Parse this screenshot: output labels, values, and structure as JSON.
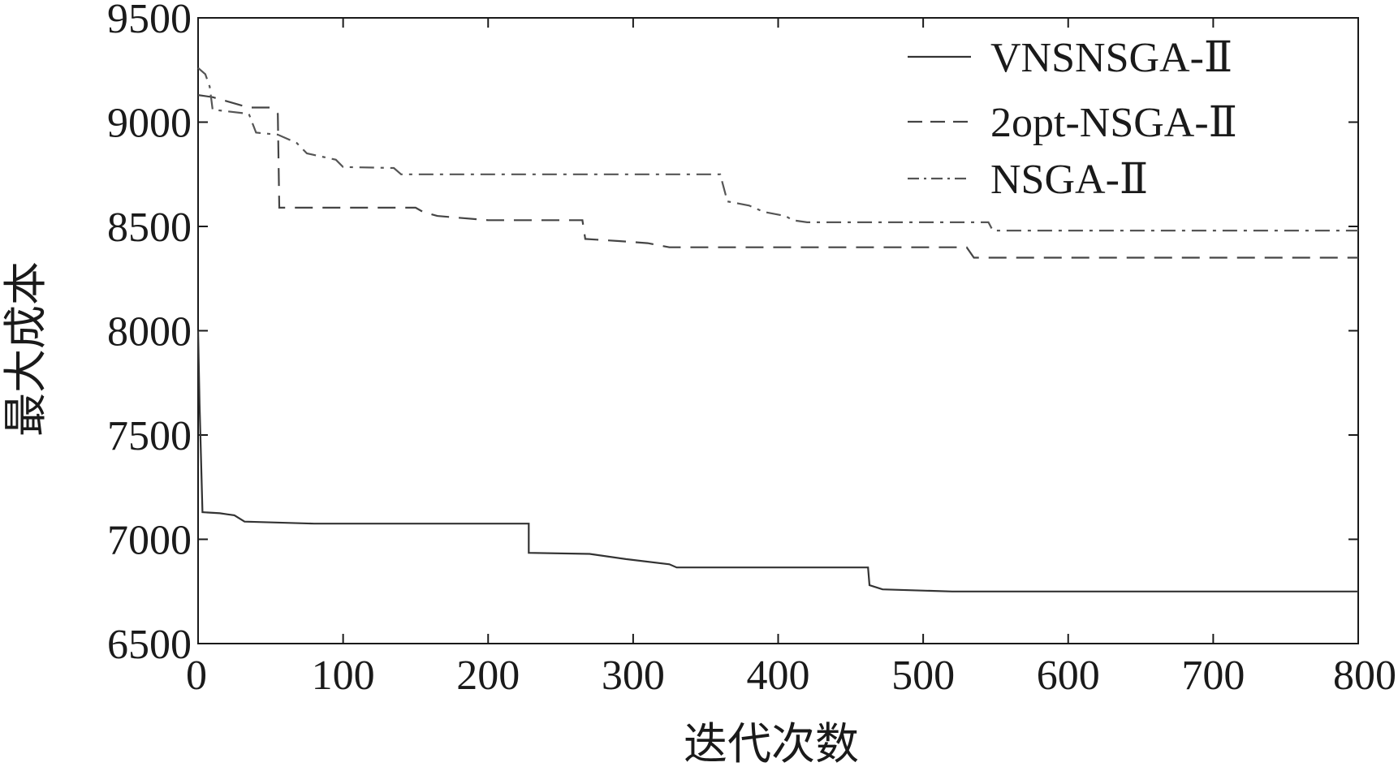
{
  "chart_data": {
    "type": "line",
    "title": "",
    "xlabel": "迭代次数",
    "ylabel": "最大成本",
    "xlim": [
      0,
      800
    ],
    "ylim": [
      6500,
      9500
    ],
    "x_ticks": [
      0,
      100,
      200,
      300,
      400,
      500,
      600,
      700,
      800
    ],
    "y_ticks": [
      6500,
      7000,
      7500,
      8000,
      8500,
      9000,
      9500
    ],
    "x_tick_labels": [
      "0",
      "100",
      "200",
      "300",
      "400",
      "500",
      "600",
      "700",
      "800"
    ],
    "y_tick_labels": [
      "6500",
      "7000",
      "7500",
      "8000",
      "8500",
      "9000",
      "9500"
    ],
    "grid": false,
    "legend_position": "top-right",
    "series": [
      {
        "name": "VNSNSGA-Ⅱ",
        "style": "solid",
        "color": "#333333",
        "points": [
          [
            0,
            8000
          ],
          [
            1,
            7650
          ],
          [
            3,
            7130
          ],
          [
            15,
            7125
          ],
          [
            20,
            7120
          ],
          [
            25,
            7115
          ],
          [
            32,
            7085
          ],
          [
            80,
            7075
          ],
          [
            200,
            7075
          ],
          [
            228,
            7075
          ],
          [
            228,
            6935
          ],
          [
            270,
            6930
          ],
          [
            295,
            6905
          ],
          [
            325,
            6880
          ],
          [
            330,
            6865
          ],
          [
            440,
            6865
          ],
          [
            462,
            6865
          ],
          [
            463,
            6780
          ],
          [
            472,
            6760
          ],
          [
            520,
            6750
          ],
          [
            800,
            6750
          ]
        ]
      },
      {
        "name": "2opt-NSGA-Ⅱ",
        "style": "dashed",
        "color": "#444444",
        "points": [
          [
            0,
            9130
          ],
          [
            10,
            9120
          ],
          [
            20,
            9100
          ],
          [
            35,
            9070
          ],
          [
            50,
            9070
          ],
          [
            55,
            9040
          ],
          [
            56,
            8590
          ],
          [
            150,
            8590
          ],
          [
            155,
            8570
          ],
          [
            165,
            8550
          ],
          [
            200,
            8530
          ],
          [
            265,
            8530
          ],
          [
            267,
            8440
          ],
          [
            290,
            8430
          ],
          [
            310,
            8420
          ],
          [
            325,
            8400
          ],
          [
            530,
            8400
          ],
          [
            535,
            8350
          ],
          [
            800,
            8350
          ]
        ]
      },
      {
        "name": "NSGA-Ⅱ",
        "style": "dashdot",
        "color": "#555555",
        "points": [
          [
            0,
            9260
          ],
          [
            5,
            9230
          ],
          [
            8,
            9170
          ],
          [
            10,
            9060
          ],
          [
            35,
            9040
          ],
          [
            40,
            8950
          ],
          [
            55,
            8940
          ],
          [
            68,
            8900
          ],
          [
            75,
            8850
          ],
          [
            95,
            8820
          ],
          [
            100,
            8785
          ],
          [
            135,
            8780
          ],
          [
            140,
            8750
          ],
          [
            360,
            8750
          ],
          [
            365,
            8620
          ],
          [
            380,
            8600
          ],
          [
            390,
            8570
          ],
          [
            405,
            8550
          ],
          [
            410,
            8530
          ],
          [
            420,
            8520
          ],
          [
            545,
            8520
          ],
          [
            548,
            8480
          ],
          [
            800,
            8480
          ]
        ]
      }
    ]
  }
}
